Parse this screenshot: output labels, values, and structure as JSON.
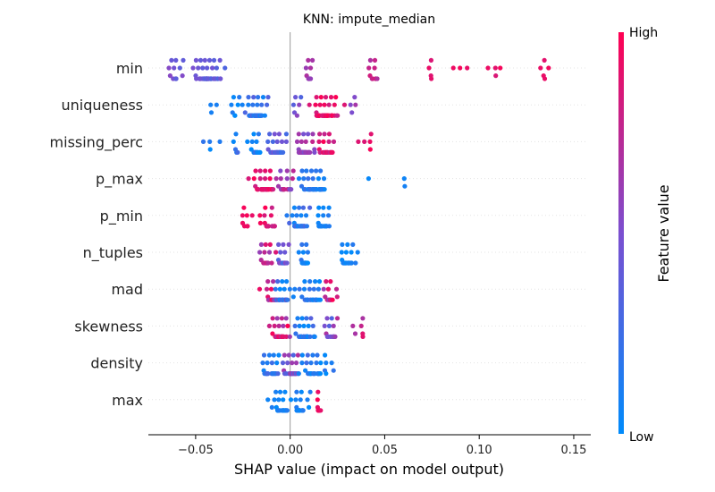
{
  "chart_data": {
    "type": "scatter",
    "subtype": "shap_beeswarm",
    "title": "KNN: impute_median",
    "xlabel": "SHAP value (impact on model output)",
    "xlim": [
      -0.075,
      0.159
    ],
    "xticks": [
      -0.05,
      0.0,
      0.05,
      0.1,
      0.15
    ],
    "xtick_labels": [
      "−0.05",
      "0.00",
      "0.05",
      "0.10",
      "0.15"
    ],
    "colorbar": {
      "label": "Feature value",
      "high_label": "High",
      "low_label": "Low",
      "low_color": "#008bfb",
      "mid_color": "#7b4fd0",
      "high_color": "#ff0052"
    },
    "zero_line": true,
    "grid": false,
    "features": [
      {
        "name": "min",
        "clusters": [
          {
            "center": -0.043,
            "spread": 0.007,
            "count": 55,
            "v": [
              0.3,
              0.5
            ]
          },
          {
            "center": -0.06,
            "spread": 0.004,
            "count": 12,
            "v": [
              0.35,
              0.55
            ]
          },
          {
            "center": 0.01,
            "spread": 0.002,
            "count": 10,
            "v": [
              0.55,
              0.7
            ]
          },
          {
            "center": 0.043,
            "spread": 0.004,
            "count": 10,
            "v": [
              0.65,
              0.85
            ]
          },
          {
            "center": 0.074,
            "spread": 0.001,
            "count": 4,
            "v": [
              0.85,
              1.0
            ]
          },
          {
            "center": 0.09,
            "spread": 0.008,
            "count": 3,
            "v": [
              0.85,
              1.0
            ]
          },
          {
            "center": 0.111,
            "spread": 0.006,
            "count": 4,
            "v": [
              0.85,
              1.0
            ]
          },
          {
            "center": 0.135,
            "spread": 0.005,
            "count": 5,
            "v": [
              0.85,
              1.0
            ]
          }
        ]
      },
      {
        "name": "uniqueness",
        "clusters": [
          {
            "center": -0.018,
            "spread": 0.004,
            "count": 55,
            "v": [
              0.0,
              0.35
            ]
          },
          {
            "center": -0.042,
            "spread": 0.002,
            "count": 3,
            "v": [
              0.0,
              0.2
            ]
          },
          {
            "center": -0.028,
            "spread": 0.003,
            "count": 8,
            "v": [
              0.0,
              0.25
            ]
          },
          {
            "center": 0.004,
            "spread": 0.003,
            "count": 6,
            "v": [
              0.3,
              0.6
            ]
          },
          {
            "center": 0.018,
            "spread": 0.006,
            "count": 60,
            "v": [
              0.75,
              1.0
            ]
          },
          {
            "center": 0.033,
            "spread": 0.002,
            "count": 4,
            "v": [
              0.5,
              0.7
            ]
          }
        ]
      },
      {
        "name": "missing_perc",
        "clusters": [
          {
            "center": -0.018,
            "spread": 0.002,
            "count": 20,
            "v": [
              0.0,
              0.3
            ]
          },
          {
            "center": -0.03,
            "spread": 0.006,
            "count": 8,
            "v": [
              0.0,
              0.3
            ]
          },
          {
            "center": -0.044,
            "spread": 0.002,
            "count": 3,
            "v": [
              0.0,
              0.3
            ]
          },
          {
            "center": -0.006,
            "spread": 0.004,
            "count": 30,
            "v": [
              0.2,
              0.5
            ]
          },
          {
            "center": 0.008,
            "spread": 0.004,
            "count": 50,
            "v": [
              0.45,
              0.75
            ]
          },
          {
            "center": 0.02,
            "spread": 0.004,
            "count": 25,
            "v": [
              0.75,
              1.0
            ]
          },
          {
            "center": 0.04,
            "spread": 0.003,
            "count": 5,
            "v": [
              0.85,
              1.0
            ]
          }
        ]
      },
      {
        "name": "p_max",
        "clusters": [
          {
            "center": -0.014,
            "spread": 0.004,
            "count": 45,
            "v": [
              0.8,
              1.0
            ]
          },
          {
            "center": -0.003,
            "spread": 0.004,
            "count": 20,
            "v": [
              0.5,
              0.8
            ]
          },
          {
            "center": 0.012,
            "spread": 0.006,
            "count": 40,
            "v": [
              0.0,
              0.25
            ]
          },
          {
            "center": 0.042,
            "spread": 0.001,
            "count": 1,
            "v": [
              0.0,
              0.1
            ]
          },
          {
            "center": 0.061,
            "spread": 0.002,
            "count": 2,
            "v": [
              0.0,
              0.1
            ]
          }
        ]
      },
      {
        "name": "p_min",
        "clusters": [
          {
            "center": -0.024,
            "spread": 0.002,
            "count": 8,
            "v": [
              0.9,
              1.0
            ]
          },
          {
            "center": -0.012,
            "spread": 0.004,
            "count": 20,
            "v": [
              0.75,
              1.0
            ]
          },
          {
            "center": 0.004,
            "spread": 0.005,
            "count": 40,
            "v": [
              0.05,
              0.35
            ]
          },
          {
            "center": 0.017,
            "spread": 0.004,
            "count": 25,
            "v": [
              0.0,
              0.15
            ]
          }
        ]
      },
      {
        "name": "n_tuples",
        "clusters": [
          {
            "center": -0.012,
            "spread": 0.003,
            "count": 15,
            "v": [
              0.6,
              0.95
            ]
          },
          {
            "center": -0.004,
            "spread": 0.003,
            "count": 18,
            "v": [
              0.2,
              0.6
            ]
          },
          {
            "center": 0.008,
            "spread": 0.002,
            "count": 25,
            "v": [
              0.0,
              0.2
            ]
          },
          {
            "center": 0.03,
            "spread": 0.004,
            "count": 25,
            "v": [
              0.0,
              0.15
            ]
          }
        ]
      },
      {
        "name": "mad",
        "clusters": [
          {
            "center": -0.01,
            "spread": 0.005,
            "count": 20,
            "v": [
              0.6,
              1.0
            ]
          },
          {
            "center": -0.004,
            "spread": 0.004,
            "count": 30,
            "v": [
              0.0,
              0.3
            ]
          },
          {
            "center": 0.01,
            "spread": 0.005,
            "count": 35,
            "v": [
              0.0,
              0.25
            ]
          },
          {
            "center": 0.02,
            "spread": 0.004,
            "count": 15,
            "v": [
              0.55,
              1.0
            ]
          }
        ]
      },
      {
        "name": "skewness",
        "clusters": [
          {
            "center": -0.006,
            "spread": 0.004,
            "count": 40,
            "v": [
              0.6,
              1.0
            ]
          },
          {
            "center": 0.008,
            "spread": 0.005,
            "count": 40,
            "v": [
              0.0,
              0.4
            ]
          },
          {
            "center": 0.022,
            "spread": 0.004,
            "count": 15,
            "v": [
              0.3,
              0.8
            ]
          },
          {
            "center": 0.037,
            "spread": 0.003,
            "count": 6,
            "v": [
              0.6,
              0.9
            ]
          }
        ]
      },
      {
        "name": "density",
        "clusters": [
          {
            "center": -0.01,
            "spread": 0.005,
            "count": 25,
            "v": [
              0.0,
              0.3
            ]
          },
          {
            "center": 0.0,
            "spread": 0.004,
            "count": 35,
            "v": [
              0.3,
              0.8
            ]
          },
          {
            "center": 0.012,
            "spread": 0.005,
            "count": 30,
            "v": [
              0.0,
              0.3
            ]
          },
          {
            "center": 0.021,
            "spread": 0.003,
            "count": 6,
            "v": [
              0.0,
              0.2
            ]
          }
        ]
      },
      {
        "name": "max",
        "clusters": [
          {
            "center": -0.005,
            "spread": 0.004,
            "count": 30,
            "v": [
              0.0,
              0.15
            ]
          },
          {
            "center": 0.005,
            "spread": 0.004,
            "count": 25,
            "v": [
              0.0,
              0.15
            ]
          },
          {
            "center": 0.015,
            "spread": 0.001,
            "count": 10,
            "v": [
              0.9,
              1.0
            ]
          }
        ]
      }
    ]
  }
}
